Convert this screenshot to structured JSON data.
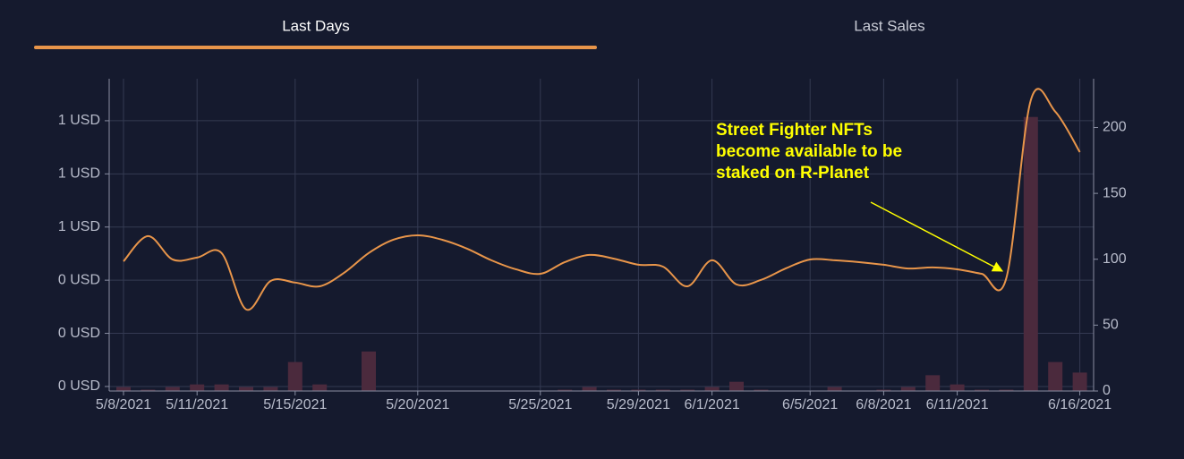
{
  "tabs": [
    "Last Days",
    "Last Sales"
  ],
  "chart_data": {
    "type": "line",
    "annotation": [
      "Street Fighter NFTs",
      "become available to be",
      "staked on R-Planet"
    ],
    "x": [
      "2021-05-08",
      "2021-05-09",
      "2021-05-10",
      "2021-05-11",
      "2021-05-12",
      "2021-05-13",
      "2021-05-14",
      "2021-05-15",
      "2021-05-16",
      "2021-05-17",
      "2021-05-18",
      "2021-05-19",
      "2021-05-20",
      "2021-05-21",
      "2021-05-22",
      "2021-05-23",
      "2021-05-24",
      "2021-05-25",
      "2021-05-26",
      "2021-05-27",
      "2021-05-28",
      "2021-05-29",
      "2021-05-30",
      "2021-05-31",
      "2021-06-01",
      "2021-06-02",
      "2021-06-03",
      "2021-06-04",
      "2021-06-05",
      "2021-06-06",
      "2021-06-07",
      "2021-06-08",
      "2021-06-09",
      "2021-06-10",
      "2021-06-11",
      "2021-06-12",
      "2021-06-13",
      "2021-06-14",
      "2021-06-15",
      "2021-06-16"
    ],
    "series": [
      {
        "type": "bar",
        "axis": "y2",
        "color": "#4b2a3d",
        "values": [
          3,
          1,
          3,
          5,
          5,
          3,
          3,
          22,
          5,
          0,
          30,
          0,
          0,
          0,
          0,
          0,
          0,
          0,
          1,
          3,
          1,
          1,
          1,
          1,
          3,
          7,
          1,
          0,
          0,
          3,
          0,
          1,
          3,
          12,
          5,
          1,
          1,
          208,
          22,
          14
        ]
      },
      {
        "type": "line",
        "color": "#e8954a",
        "values": [
          0.471,
          0.566,
          0.478,
          0.485,
          0.502,
          0.29,
          0.397,
          0.391,
          0.377,
          0.428,
          0.502,
          0.552,
          0.569,
          0.552,
          0.519,
          0.475,
          0.441,
          0.424,
          0.468,
          0.495,
          0.481,
          0.458,
          0.451,
          0.377,
          0.475,
          0.384,
          0.401,
          0.444,
          0.478,
          0.475,
          0.468,
          0.458,
          0.444,
          0.448,
          0.441,
          0.424,
          0.407,
          1.077,
          1.034,
          0.882
        ]
      }
    ],
    "xlim": [
      "2021-05-07",
      "2021-06-17"
    ],
    "xticks": [
      {
        "value": "2021-05-08",
        "label": "5/8/2021"
      },
      {
        "value": "2021-05-11",
        "label": "5/11/2021"
      },
      {
        "value": "2021-05-15",
        "label": "5/15/2021"
      },
      {
        "value": "2021-05-20",
        "label": "5/20/2021"
      },
      {
        "value": "2021-05-25",
        "label": "5/25/2021"
      },
      {
        "value": "2021-05-29",
        "label": "5/29/2021"
      },
      {
        "value": "2021-06-01",
        "label": "6/1/2021"
      },
      {
        "value": "2021-06-05",
        "label": "6/5/2021"
      },
      {
        "value": "2021-06-08",
        "label": "6/8/2021"
      },
      {
        "value": "2021-06-11",
        "label": "6/11/2021"
      },
      {
        "value": "2021-06-16",
        "label": "6/16/2021"
      }
    ],
    "ylim": [
      -0.017,
      1.158
    ],
    "yticks": [
      {
        "value": 0,
        "label": "0 USD"
      },
      {
        "value": 0.2,
        "label": "0 USD"
      },
      {
        "value": 0.4,
        "label": "0 USD"
      },
      {
        "value": 0.6,
        "label": "1 USD"
      },
      {
        "value": 0.8,
        "label": "1 USD"
      },
      {
        "value": 1.0,
        "label": "1 USD"
      }
    ],
    "y2lim": [
      0,
      237
    ],
    "y2ticks": [
      0,
      50,
      100,
      150,
      200
    ],
    "grid": true
  }
}
